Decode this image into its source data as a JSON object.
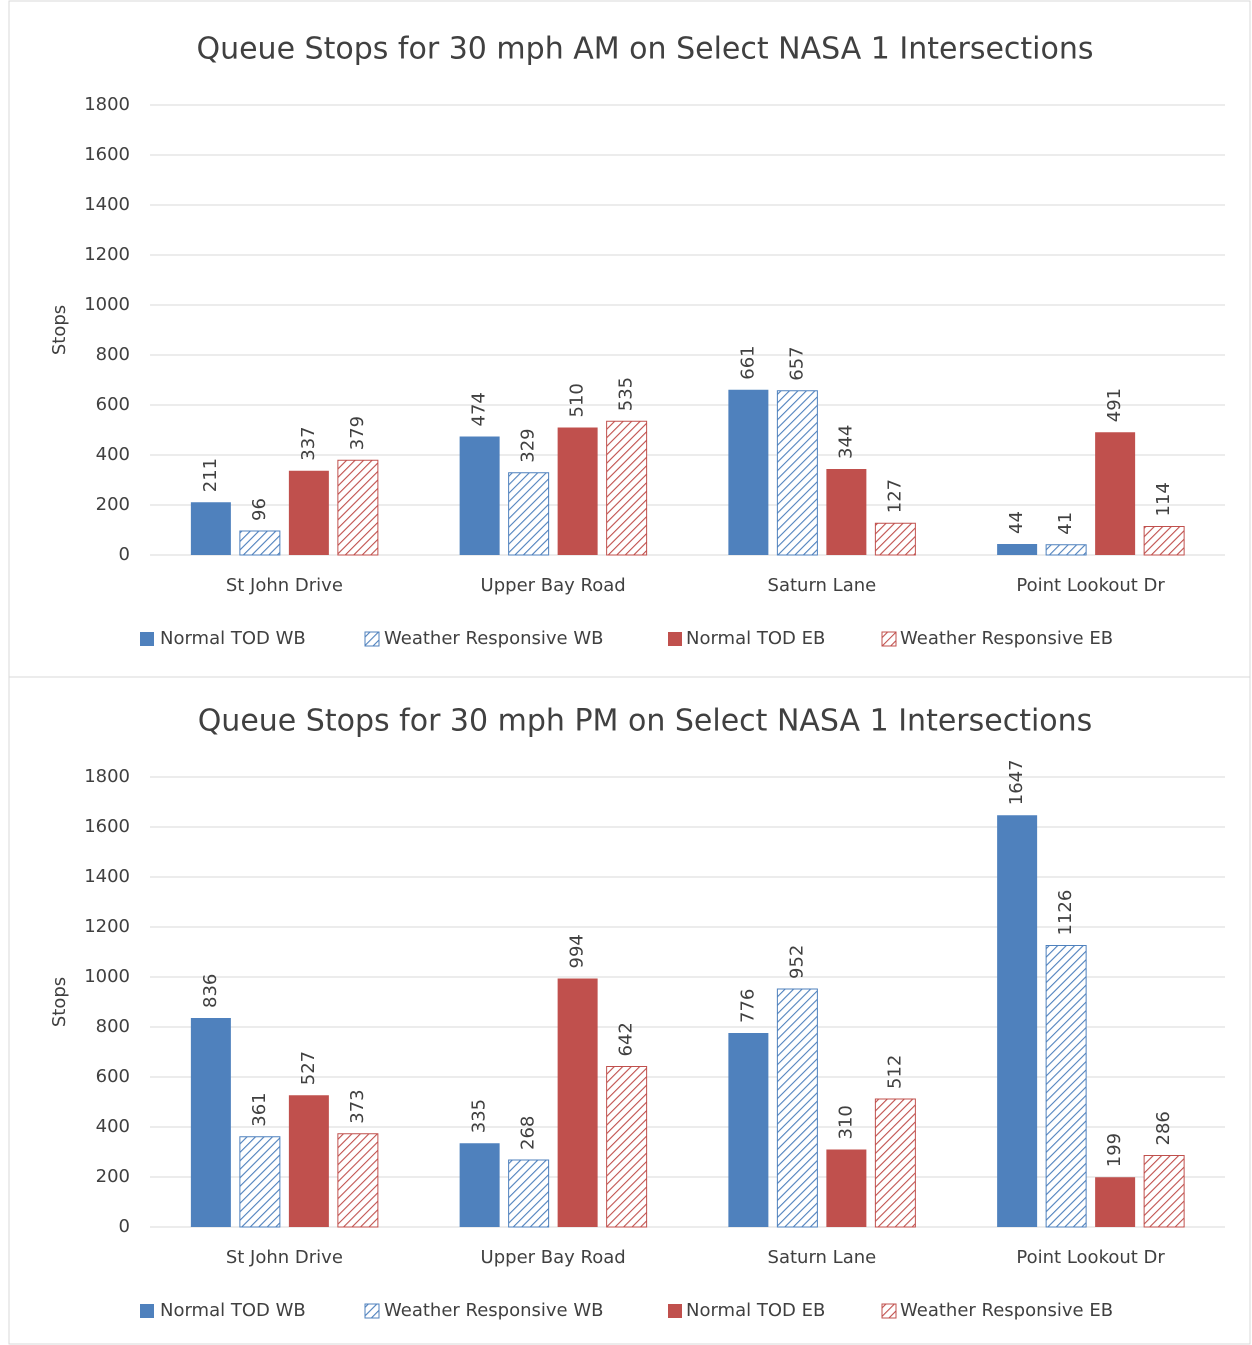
{
  "chart_data": [
    {
      "type": "bar",
      "title": "Queue Stops for 30 mph AM on Select NASA 1 Intersections",
      "ylabel": "Stops",
      "categories": [
        "St John Drive",
        "Upper Bay Road",
        "Saturn Lane",
        "Point Lookout Dr"
      ],
      "series": [
        {
          "name": "Normal TOD WB",
          "color": "#4f81bd",
          "hatch": false,
          "values": [
            211,
            474,
            661,
            44
          ]
        },
        {
          "name": "Weather Responsive WB",
          "color": "#4f81bd",
          "hatch": true,
          "values": [
            96,
            329,
            657,
            41
          ]
        },
        {
          "name": "Normal TOD EB",
          "color": "#c0504d",
          "hatch": false,
          "values": [
            337,
            510,
            344,
            491
          ]
        },
        {
          "name": "Weather Responsive EB",
          "color": "#c0504d",
          "hatch": true,
          "values": [
            379,
            535,
            127,
            114
          ]
        }
      ],
      "ylim": [
        0,
        1800
      ],
      "yticks": [
        0,
        200,
        400,
        600,
        800,
        1000,
        1200,
        1400,
        1600,
        1800
      ],
      "grid": true,
      "legend": "bottom"
    },
    {
      "type": "bar",
      "title": "Queue Stops for 30 mph PM on Select NASA 1 Intersections",
      "ylabel": "Stops",
      "categories": [
        "St John Drive",
        "Upper Bay Road",
        "Saturn Lane",
        "Point Lookout Dr"
      ],
      "series": [
        {
          "name": "Normal TOD WB",
          "color": "#4f81bd",
          "hatch": false,
          "values": [
            836,
            335,
            776,
            1647
          ]
        },
        {
          "name": "Weather Responsive WB",
          "color": "#4f81bd",
          "hatch": true,
          "values": [
            361,
            268,
            952,
            1126
          ]
        },
        {
          "name": "Normal TOD EB",
          "color": "#c0504d",
          "hatch": false,
          "values": [
            527,
            994,
            310,
            199
          ]
        },
        {
          "name": "Weather Responsive EB",
          "color": "#c0504d",
          "hatch": true,
          "values": [
            373,
            642,
            512,
            286
          ]
        }
      ],
      "ylim": [
        0,
        1800
      ],
      "yticks": [
        0,
        200,
        400,
        600,
        800,
        1000,
        1200,
        1400,
        1600,
        1800
      ],
      "grid": true,
      "legend": "bottom"
    }
  ]
}
